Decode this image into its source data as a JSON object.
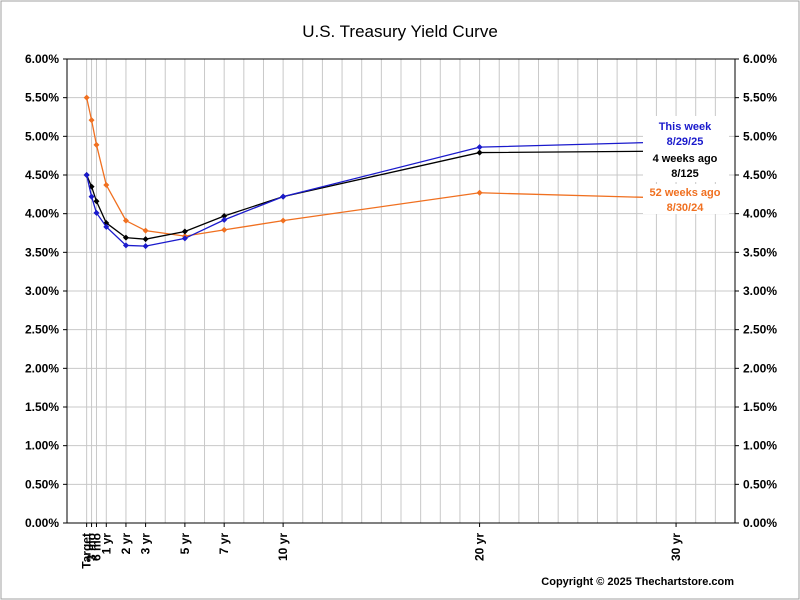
{
  "chart_data": {
    "type": "line",
    "title": "U.S. Treasury Yield Curve",
    "copyright": "Copyright © 2025 Thechartstore.com",
    "categories": [
      "Target",
      "3 mo",
      "6 mo",
      "1 yr",
      "2 yr",
      "3 yr",
      "5 yr",
      "7 yr",
      "10 yr",
      "20 yr",
      "30 yr"
    ],
    "x_positions": [
      0,
      0.25,
      0.5,
      1,
      2,
      3,
      5,
      7,
      10,
      20,
      30
    ],
    "xlim": [
      -1,
      33
    ],
    "ylim": [
      0,
      6
    ],
    "yticks": [
      "0.00%",
      "0.50%",
      "1.00%",
      "1.50%",
      "2.00%",
      "2.50%",
      "3.00%",
      "3.50%",
      "4.00%",
      "4.50%",
      "5.00%",
      "5.50%",
      "6.00%"
    ],
    "grid": true,
    "series": [
      {
        "name": "52 weeks ago",
        "date": "8/30/24",
        "color": "#f07020",
        "values": [
          5.5,
          5.21,
          4.89,
          4.37,
          3.91,
          3.78,
          3.71,
          3.79,
          3.91,
          4.27,
          4.2
        ]
      },
      {
        "name": "4 weeks ago",
        "date": "8/125",
        "color": "#000000",
        "values": [
          4.5,
          4.35,
          4.16,
          3.88,
          3.69,
          3.67,
          3.77,
          3.97,
          4.22,
          4.79,
          4.81
        ]
      },
      {
        "name": "This week",
        "date": "8/29/25",
        "color": "#1a1acc",
        "values": [
          4.5,
          4.22,
          4.01,
          3.83,
          3.59,
          3.58,
          3.68,
          3.92,
          4.22,
          4.86,
          4.93
        ]
      }
    ]
  }
}
